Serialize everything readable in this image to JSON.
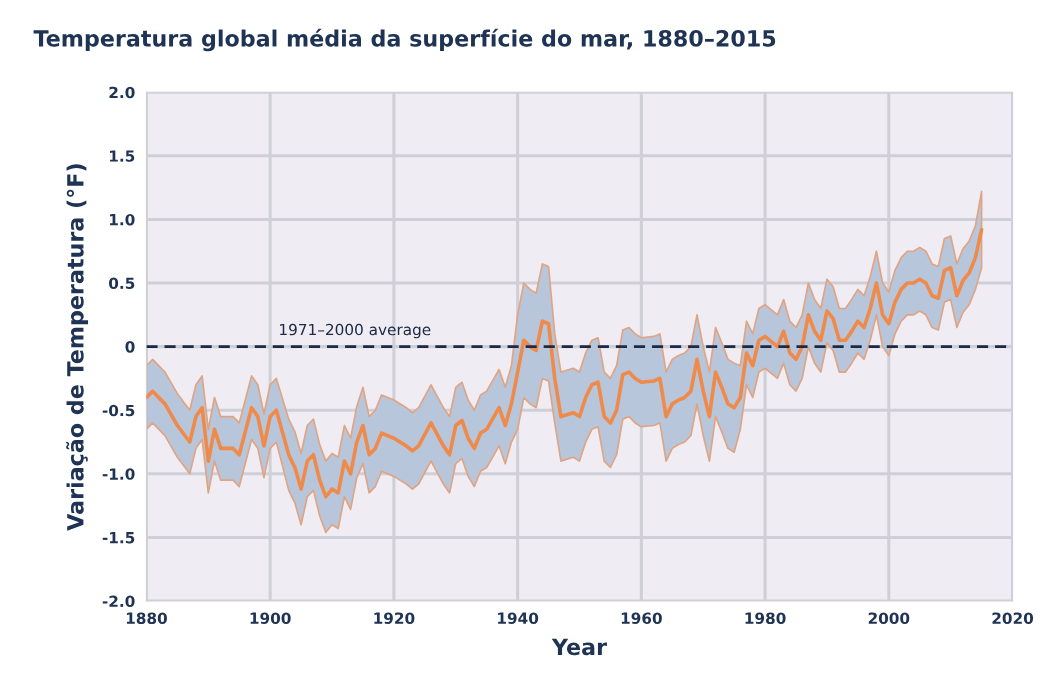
{
  "chart_data": {
    "type": "line",
    "title": "Temperatura global média da superfície do mar, 1880–2015",
    "xlabel": "Year",
    "ylabel": "Variação de Temperatura (°F)",
    "x": [
      1880,
      1881,
      1883,
      1885,
      1887,
      1888,
      1889,
      1890,
      1891,
      1892,
      1894,
      1895,
      1897,
      1898,
      1899,
      1900,
      1901,
      1903,
      1904,
      1905,
      1906,
      1907,
      1908,
      1909,
      1910,
      1911,
      1912,
      1913,
      1914,
      1915,
      1916,
      1917,
      1918,
      1920,
      1922,
      1923,
      1924,
      1926,
      1928,
      1929,
      1930,
      1931,
      1932,
      1933,
      1934,
      1935,
      1937,
      1938,
      1939,
      1940,
      1941,
      1942,
      1943,
      1944,
      1945,
      1946,
      1947,
      1949,
      1950,
      1951,
      1952,
      1953,
      1954,
      1955,
      1956,
      1957,
      1958,
      1959,
      1960,
      1962,
      1963,
      1964,
      1965,
      1966,
      1967,
      1968,
      1969,
      1970,
      1971,
      1972,
      1973,
      1974,
      1975,
      1976,
      1977,
      1978,
      1979,
      1980,
      1982,
      1983,
      1984,
      1985,
      1986,
      1987,
      1988,
      1989,
      1990,
      1991,
      1992,
      1993,
      1994,
      1995,
      1996,
      1997,
      1998,
      1999,
      2000,
      2001,
      2002,
      2003,
      2004,
      2005,
      2006,
      2007,
      2008,
      2009,
      2010,
      2011,
      2012,
      2013,
      2014,
      2015
    ],
    "series": [
      {
        "color": "#f08a4b",
        "values": [
          -0.4,
          -0.35,
          -0.45,
          -0.62,
          -0.75,
          -0.55,
          -0.48,
          -0.9,
          -0.65,
          -0.8,
          -0.8,
          -0.85,
          -0.48,
          -0.55,
          -0.78,
          -0.55,
          -0.5,
          -0.85,
          -0.95,
          -1.12,
          -0.9,
          -0.85,
          -1.05,
          -1.18,
          -1.12,
          -1.15,
          -0.9,
          -1.0,
          -0.75,
          -0.62,
          -0.85,
          -0.8,
          -0.68,
          -0.72,
          -0.78,
          -0.82,
          -0.78,
          -0.6,
          -0.78,
          -0.85,
          -0.62,
          -0.58,
          -0.72,
          -0.8,
          -0.68,
          -0.65,
          -0.48,
          -0.62,
          -0.45,
          -0.2,
          0.05,
          0.0,
          -0.03,
          0.2,
          0.18,
          -0.25,
          -0.55,
          -0.52,
          -0.55,
          -0.4,
          -0.3,
          -0.28,
          -0.55,
          -0.6,
          -0.5,
          -0.22,
          -0.2,
          -0.25,
          -0.28,
          -0.27,
          -0.25,
          -0.55,
          -0.45,
          -0.42,
          -0.4,
          -0.35,
          -0.1,
          -0.35,
          -0.55,
          -0.2,
          -0.32,
          -0.45,
          -0.48,
          -0.4,
          -0.05,
          -0.15,
          0.05,
          0.08,
          0.0,
          0.12,
          -0.05,
          -0.1,
          0.0,
          0.25,
          0.12,
          0.05,
          0.28,
          0.22,
          0.05,
          0.05,
          0.12,
          0.2,
          0.15,
          0.3,
          0.5,
          0.25,
          0.18,
          0.35,
          0.45,
          0.5,
          0.5,
          0.53,
          0.5,
          0.4,
          0.38,
          0.6,
          0.62,
          0.4,
          0.52,
          0.58,
          0.7,
          0.92
        ],
        "lower": [
          -0.65,
          -0.6,
          -0.7,
          -0.87,
          -1.0,
          -0.8,
          -0.73,
          -1.15,
          -0.9,
          -1.05,
          -1.05,
          -1.1,
          -0.73,
          -0.8,
          -1.03,
          -0.8,
          -0.75,
          -1.13,
          -1.23,
          -1.4,
          -1.18,
          -1.13,
          -1.33,
          -1.46,
          -1.4,
          -1.43,
          -1.18,
          -1.28,
          -1.03,
          -0.92,
          -1.15,
          -1.1,
          -0.98,
          -1.02,
          -1.08,
          -1.12,
          -1.08,
          -0.9,
          -1.08,
          -1.15,
          -0.92,
          -0.88,
          -1.02,
          -1.1,
          -0.98,
          -0.95,
          -0.78,
          -0.92,
          -0.75,
          -0.65,
          -0.4,
          -0.45,
          -0.48,
          -0.25,
          -0.27,
          -0.6,
          -0.9,
          -0.87,
          -0.9,
          -0.75,
          -0.65,
          -0.63,
          -0.9,
          -0.95,
          -0.85,
          -0.57,
          -0.55,
          -0.6,
          -0.63,
          -0.62,
          -0.6,
          -0.9,
          -0.8,
          -0.77,
          -0.75,
          -0.7,
          -0.45,
          -0.7,
          -0.9,
          -0.55,
          -0.67,
          -0.8,
          -0.83,
          -0.65,
          -0.3,
          -0.4,
          -0.2,
          -0.17,
          -0.25,
          -0.13,
          -0.3,
          -0.35,
          -0.25,
          0.0,
          -0.13,
          -0.2,
          0.03,
          -0.03,
          -0.2,
          -0.2,
          -0.13,
          -0.05,
          -0.1,
          0.05,
          0.25,
          0.0,
          -0.07,
          0.1,
          0.2,
          0.25,
          0.25,
          0.28,
          0.25,
          0.15,
          0.13,
          0.35,
          0.37,
          0.15,
          0.27,
          0.33,
          0.45,
          0.62
        ],
        "upper": [
          -0.15,
          -0.1,
          -0.2,
          -0.37,
          -0.5,
          -0.3,
          -0.23,
          -0.65,
          -0.4,
          -0.55,
          -0.55,
          -0.6,
          -0.23,
          -0.3,
          -0.53,
          -0.3,
          -0.25,
          -0.57,
          -0.67,
          -0.84,
          -0.62,
          -0.57,
          -0.77,
          -0.9,
          -0.84,
          -0.87,
          -0.62,
          -0.72,
          -0.47,
          -0.32,
          -0.55,
          -0.5,
          -0.38,
          -0.42,
          -0.48,
          -0.52,
          -0.48,
          -0.3,
          -0.48,
          -0.55,
          -0.32,
          -0.28,
          -0.42,
          -0.5,
          -0.38,
          -0.35,
          -0.18,
          -0.32,
          -0.15,
          0.25,
          0.5,
          0.45,
          0.42,
          0.65,
          0.63,
          0.1,
          -0.2,
          -0.17,
          -0.2,
          -0.05,
          0.05,
          0.07,
          -0.2,
          -0.25,
          -0.15,
          0.13,
          0.15,
          0.1,
          0.07,
          0.08,
          0.1,
          -0.2,
          -0.1,
          -0.07,
          -0.05,
          0.0,
          0.25,
          0.0,
          -0.2,
          0.15,
          0.03,
          -0.1,
          -0.13,
          -0.15,
          0.2,
          0.1,
          0.3,
          0.33,
          0.25,
          0.37,
          0.2,
          0.15,
          0.25,
          0.5,
          0.37,
          0.3,
          0.53,
          0.47,
          0.3,
          0.3,
          0.37,
          0.45,
          0.4,
          0.55,
          0.75,
          0.5,
          0.43,
          0.6,
          0.7,
          0.75,
          0.75,
          0.78,
          0.75,
          0.65,
          0.63,
          0.85,
          0.87,
          0.65,
          0.77,
          0.83,
          0.95,
          1.22
        ]
      }
    ],
    "xlim": [
      1880,
      2020
    ],
    "xticks": [
      1880,
      1900,
      1920,
      1940,
      1960,
      1980,
      2000,
      2020
    ],
    "ylim": [
      -2.0,
      2.0
    ],
    "yticks": [
      {
        "value": -2.0,
        "label": "-2.0"
      },
      {
        "value": -1.5,
        "label": "-1.5"
      },
      {
        "value": -1.0,
        "label": "-1.0"
      },
      {
        "value": -0.5,
        "label": "-0.5"
      },
      {
        "value": 0,
        "label": "0"
      },
      {
        "value": 0.5,
        "label": "0.5"
      },
      {
        "value": 1.0,
        "label": "1.0"
      },
      {
        "value": 1.5,
        "label": "1.5"
      },
      {
        "value": 2.0,
        "label": "2.0"
      }
    ],
    "ref_lines": [
      {
        "axis": "y",
        "value": 0,
        "label": "1971–2000 average",
        "color": "#1c2a45",
        "line_style": "dashed"
      }
    ],
    "grid": true
  }
}
